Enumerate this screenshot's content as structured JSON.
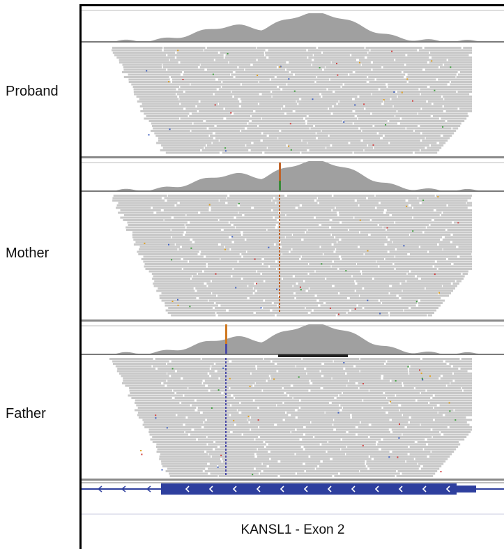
{
  "samples": [
    {
      "label": "Proband",
      "variant": null,
      "deletion_bar": false
    },
    {
      "label": "Mother",
      "variant": {
        "colors": [
          "#c0642a",
          "#3a8a3a"
        ]
      },
      "deletion_bar": false
    },
    {
      "label": "Father",
      "variant": {
        "colors": [
          "#d07a22",
          "#4a4aa8"
        ]
      },
      "deletion_bar": true
    }
  ],
  "colors": {
    "coverage": "#a0a0a0",
    "read": "#c8c8c8",
    "track_divider": "#7a7a7a",
    "gene": "#2e3f9e",
    "deletion": "#222222"
  },
  "gene_track": {
    "caption": "KANSL1 - Exon 2",
    "strand_symbol": "<"
  }
}
